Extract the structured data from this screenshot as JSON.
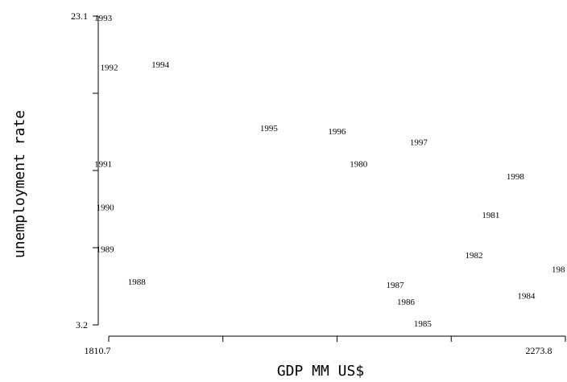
{
  "chart_data": {
    "type": "scatter",
    "xlabel": "GDP MM US$",
    "ylabel": "unemployment rate",
    "xlim": [
      1810.7,
      2273.8
    ],
    "ylim": [
      3.2,
      23.1
    ],
    "x_tick_labels": [
      "1810.7",
      "2273.8"
    ],
    "y_tick_labels": [
      "3.2",
      "23.1"
    ],
    "marker": "year-label",
    "points": [
      {
        "label": "1980",
        "x": 2069,
        "y": 13.6
      },
      {
        "label": "1981",
        "x": 2203,
        "y": 10.3
      },
      {
        "label": "1982",
        "x": 2186,
        "y": 7.7
      },
      {
        "label": "1984",
        "x": 2239,
        "y": 5.1
      },
      {
        "label": "1985",
        "x": 2134,
        "y": 3.3
      },
      {
        "label": "1986",
        "x": 2117,
        "y": 4.7
      },
      {
        "label": "1987",
        "x": 2106,
        "y": 5.8
      },
      {
        "label": "1988",
        "x": 1844,
        "y": 6.0
      },
      {
        "label": "1989",
        "x": 1812,
        "y": 8.1
      },
      {
        "label": "1990",
        "x": 1812,
        "y": 10.8
      },
      {
        "label": "1991",
        "x": 1810,
        "y": 13.6
      },
      {
        "label": "1992",
        "x": 1816,
        "y": 19.8
      },
      {
        "label": "1993",
        "x": 1810,
        "y": 23.0
      },
      {
        "label": "1994",
        "x": 1868,
        "y": 20.0
      },
      {
        "label": "1995",
        "x": 1978,
        "y": 15.9
      },
      {
        "label": "1996",
        "x": 2047,
        "y": 15.7
      },
      {
        "label": "1997",
        "x": 2130,
        "y": 15.0
      },
      {
        "label": "1998",
        "x": 2228,
        "y": 12.8
      },
      {
        "label": "198",
        "x": 2273.8,
        "y": 6.8
      }
    ]
  }
}
